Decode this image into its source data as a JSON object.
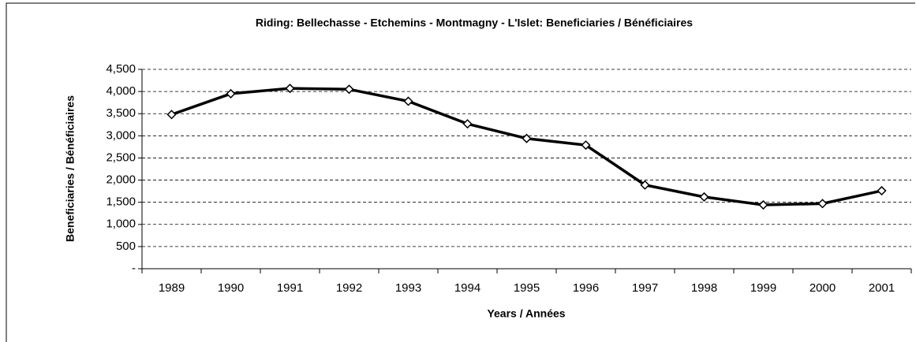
{
  "chart_data": {
    "type": "line",
    "title": "Riding:  Bellechasse - Etchemins - Montmagny - L'Islet:  Beneficiaries / Bénéficiaires",
    "x_label": "Years / Années",
    "y_label": "Beneficiaries / Bénéficiaires",
    "categories": [
      "1989",
      "1990",
      "1991",
      "1992",
      "1993",
      "1994",
      "1995",
      "1996",
      "1997",
      "1998",
      "1999",
      "2000",
      "2001"
    ],
    "values": [
      3480,
      3950,
      4070,
      4050,
      3780,
      3270,
      2940,
      2790,
      1890,
      1620,
      1440,
      1470,
      1760
    ],
    "color": "#000000",
    "ylim": [
      0,
      4500
    ],
    "yticks": [
      {
        "value": 0,
        "label": "-"
      },
      500,
      {
        "value": 1000,
        "label": "1,000"
      },
      {
        "value": 1500,
        "label": "1,500"
      },
      {
        "value": 2000,
        "label": "2,000"
      },
      {
        "value": 2500,
        "label": "2,500"
      },
      {
        "value": 3000,
        "label": "3,000"
      },
      {
        "value": 3500,
        "label": "3,500"
      },
      {
        "value": 4000,
        "label": "4,000"
      },
      {
        "value": 4500,
        "label": "4,500"
      }
    ],
    "grid": true
  }
}
